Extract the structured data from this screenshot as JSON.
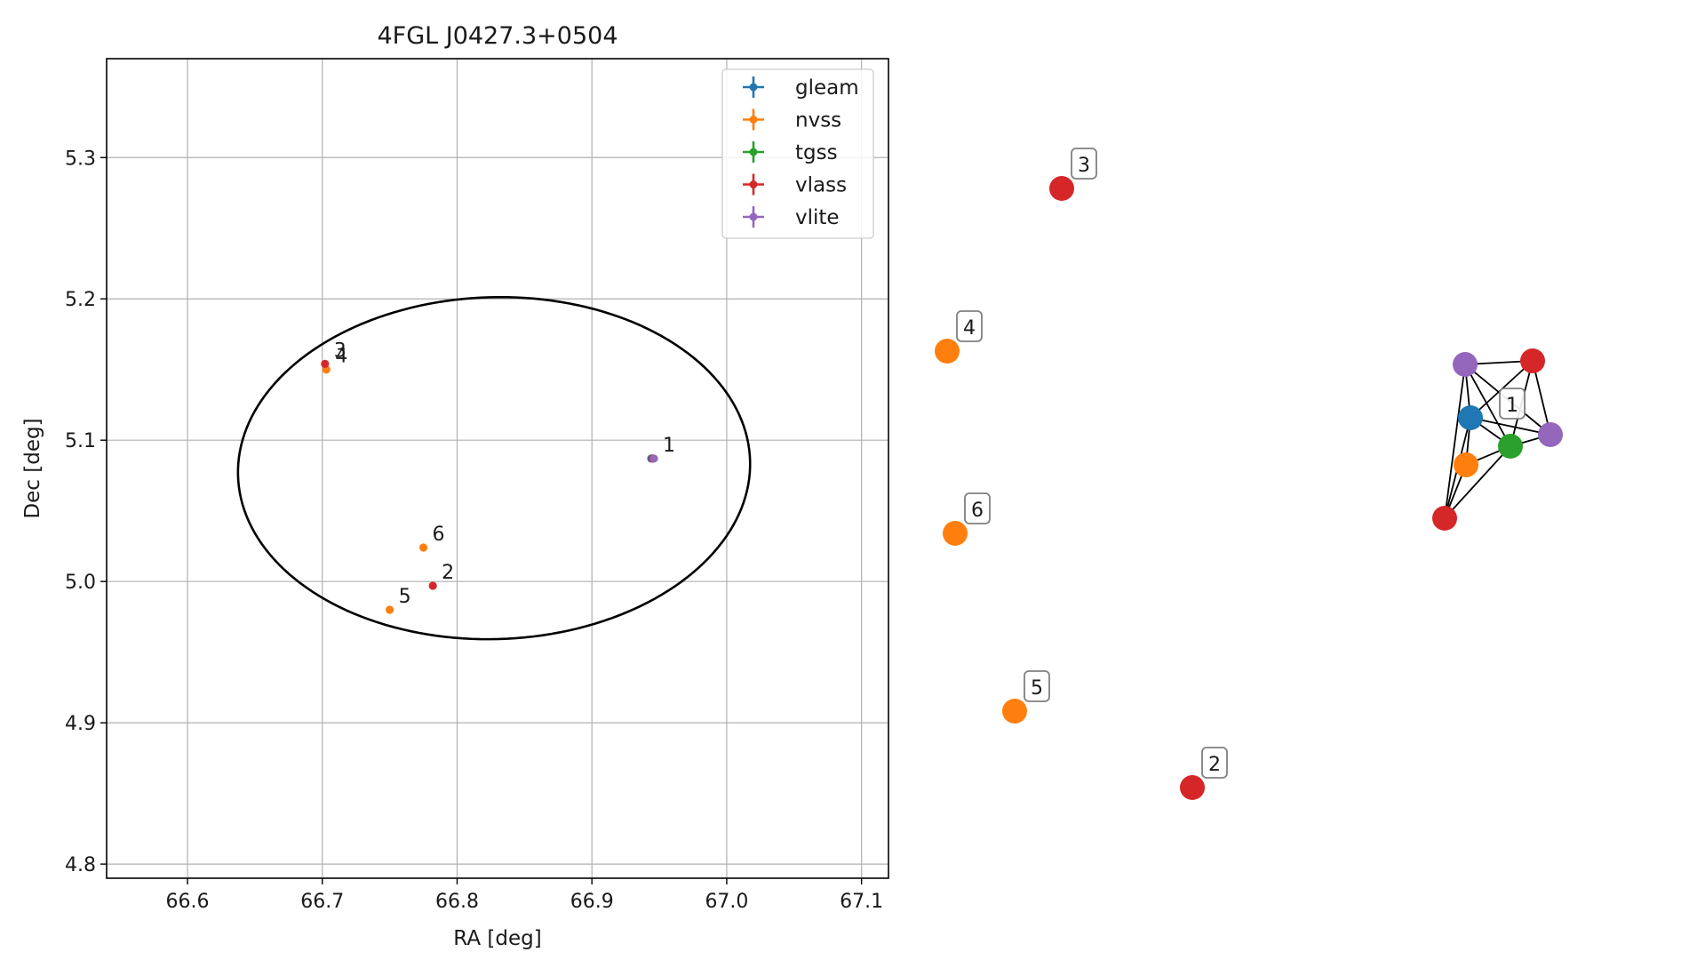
{
  "chart_data": [
    {
      "type": "scatter",
      "title": "4FGL J0427.3+0504",
      "xlabel": "RA [deg]",
      "ylabel": "Dec [deg]",
      "xlim": [
        66.54,
        67.12
      ],
      "ylim": [
        4.79,
        5.37
      ],
      "xticks": [
        66.6,
        66.7,
        66.8,
        66.9,
        67.0,
        67.1
      ],
      "xtick_labels": [
        "66.6",
        "66.7",
        "66.8",
        "66.9",
        "67.0",
        "67.1"
      ],
      "yticks": [
        4.8,
        4.9,
        5.0,
        5.1,
        5.2,
        5.3
      ],
      "ytick_labels": [
        "4.8",
        "4.9",
        "5.0",
        "5.1",
        "5.2",
        "5.3"
      ],
      "grid": true,
      "legend_position": "top-right",
      "error_ellipse": {
        "center": [
          66.8274,
          5.0802
        ],
        "semi_axes": [
          0.19,
          0.121
        ],
        "angle_deg": 1.5
      },
      "series": [
        {
          "name": "gleam",
          "color": "#1f77b4",
          "points": [
            {
              "x": 66.944,
              "y": 5.087
            }
          ]
        },
        {
          "name": "nvss",
          "color": "#ff7f0e",
          "points": [
            {
              "x": 66.703,
              "y": 5.15
            },
            {
              "x": 66.75,
              "y": 4.98
            },
            {
              "x": 66.775,
              "y": 5.024
            },
            {
              "x": 66.945,
              "y": 5.087
            }
          ]
        },
        {
          "name": "tgss",
          "color": "#2ca02c",
          "points": [
            {
              "x": 66.945,
              "y": 5.087
            }
          ]
        },
        {
          "name": "vlass",
          "color": "#d62728",
          "points": [
            {
              "x": 66.702,
              "y": 5.154
            },
            {
              "x": 66.782,
              "y": 4.997
            },
            {
              "x": 66.945,
              "y": 5.087
            }
          ]
        },
        {
          "name": "vlite",
          "color": "#9467bd",
          "points": [
            {
              "x": 66.946,
              "y": 5.087
            }
          ]
        }
      ],
      "annotations": [
        {
          "text": "1",
          "x": 66.946,
          "y": 5.087
        },
        {
          "text": "2",
          "x": 66.782,
          "y": 4.997
        },
        {
          "text": "3",
          "x": 66.702,
          "y": 5.154
        },
        {
          "text": "4",
          "x": 66.703,
          "y": 5.15
        },
        {
          "text": "5",
          "x": 66.75,
          "y": 4.98
        },
        {
          "text": "6",
          "x": 66.775,
          "y": 5.024
        }
      ]
    },
    {
      "type": "network",
      "labeled_nodes": [
        {
          "label": "1",
          "color": "#1f77b4"
        },
        {
          "label": "2",
          "color": "#d62728"
        },
        {
          "label": "3",
          "color": "#d62728"
        },
        {
          "label": "4",
          "color": "#ff7f0e"
        },
        {
          "label": "5",
          "color": "#ff7f0e"
        },
        {
          "label": "6",
          "color": "#ff7f0e"
        }
      ],
      "cluster_node_colors": [
        "#9467bd",
        "#d62728",
        "#1f77b4",
        "#2ca02c",
        "#9467bd",
        "#ff7f0e",
        "#d62728"
      ]
    }
  ]
}
